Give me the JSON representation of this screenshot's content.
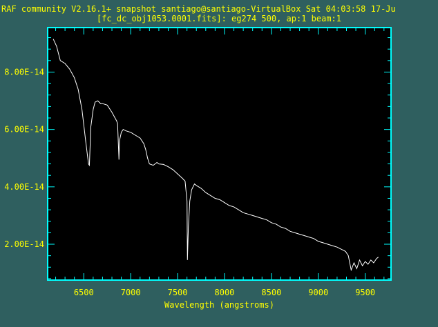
{
  "colors": {
    "background": "#2f5f5f",
    "panel": "#000000",
    "axis": "#00ffff",
    "text": "#ffff00",
    "spectrum": "#ffffff"
  },
  "chart_data": {
    "type": "line",
    "title": "RAF community V2.16.1+ snapshot santiago@santiago-VirtualBox Sat 04:03:58 17-Ju",
    "subtitle": "[fc_dc_obj1053.0001.fits]: eg274 500, ap:1 beam:1",
    "xlabel": "Wavelength (angstroms)",
    "ylabel": "",
    "xlim": [
      6115,
      9775
    ],
    "ylim": [
      7.5e-15,
      9.55e-14
    ],
    "x_ticks": [
      6500,
      7000,
      7500,
      8000,
      8500,
      9000,
      9500
    ],
    "x_tick_labels": [
      "6500",
      "7000",
      "7500",
      "8000",
      "8500",
      "9000",
      "9500"
    ],
    "y_ticks": [
      2e-14,
      4e-14,
      6e-14,
      8e-14
    ],
    "y_tick_labels": [
      "2.00E-14",
      "4.00E-14",
      "6.00E-14",
      "8.00E-14"
    ],
    "grid": false,
    "series": [
      {
        "x": [
          6175,
          6210,
          6250,
          6300,
          6350,
          6400,
          6440,
          6480,
          6520,
          6550,
          6560,
          6565,
          6575,
          6600,
          6620,
          6650,
          6680,
          6700,
          6750,
          6800,
          6850,
          6860,
          6868,
          6875,
          6880,
          6900,
          6920,
          6950,
          7000,
          7050,
          7100,
          7140,
          7160,
          7180,
          7200,
          7240,
          7280,
          7300,
          7350,
          7400,
          7450,
          7500,
          7550,
          7580,
          7600,
          7605,
          7615,
          7630,
          7650,
          7680,
          7700,
          7750,
          7800,
          7850,
          7900,
          7950,
          8000,
          8050,
          8100,
          8150,
          8200,
          8250,
          8300,
          8350,
          8400,
          8450,
          8500,
          8550,
          8600,
          8650,
          8700,
          8750,
          8800,
          8850,
          8900,
          8950,
          9000,
          9050,
          9100,
          9150,
          9200,
          9230,
          9260,
          9290,
          9320,
          9350,
          9380,
          9410,
          9440,
          9470,
          9500,
          9530,
          9560,
          9590,
          9620,
          9640
        ],
        "y": [
          9.15e-14,
          8.9e-14,
          8.4e-14,
          8.3e-14,
          8.1e-14,
          7.8e-14,
          7.4e-14,
          6.7e-14,
          5.6e-14,
          4.8e-14,
          4.75e-14,
          5.2e-14,
          6.1e-14,
          6.7e-14,
          6.95e-14,
          7e-14,
          6.9e-14,
          6.9e-14,
          6.85e-14,
          6.6e-14,
          6.3e-14,
          6.2e-14,
          5.5e-14,
          4.95e-14,
          5.6e-14,
          5.9e-14,
          6e-14,
          5.95e-14,
          5.9e-14,
          5.8e-14,
          5.7e-14,
          5.5e-14,
          5.3e-14,
          5e-14,
          4.8e-14,
          4.75e-14,
          4.85e-14,
          4.8e-14,
          4.78e-14,
          4.7e-14,
          4.6e-14,
          4.45e-14,
          4.3e-14,
          4.2e-14,
          3.5e-14,
          1.45e-14,
          2.6e-14,
          3.5e-14,
          3.9e-14,
          4.1e-14,
          4.05e-14,
          3.95e-14,
          3.8e-14,
          3.7e-14,
          3.6e-14,
          3.55e-14,
          3.45e-14,
          3.35e-14,
          3.3e-14,
          3.2e-14,
          3.1e-14,
          3.05e-14,
          3e-14,
          2.95e-14,
          2.9e-14,
          2.85e-14,
          2.75e-14,
          2.7e-14,
          2.6e-14,
          2.55e-14,
          2.45e-14,
          2.4e-14,
          2.35e-14,
          2.3e-14,
          2.25e-14,
          2.2e-14,
          2.1e-14,
          2.05e-14,
          2e-14,
          1.95e-14,
          1.9e-14,
          1.85e-14,
          1.8e-14,
          1.75e-14,
          1.6e-14,
          1.1e-14,
          1.35e-14,
          1.15e-14,
          1.45e-14,
          1.25e-14,
          1.4e-14,
          1.3e-14,
          1.45e-14,
          1.35e-14,
          1.5e-14,
          1.55e-14
        ]
      }
    ]
  }
}
